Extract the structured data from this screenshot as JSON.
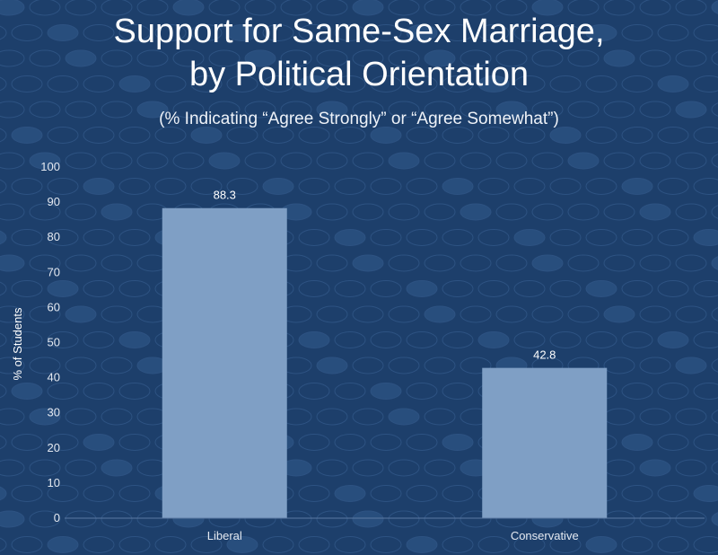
{
  "chart_data": {
    "type": "bar",
    "title_line1": "Support for Same-Sex Marriage,",
    "title_line2": "by Political Orientation",
    "subtitle": "(% Indicating “Agree Strongly” or “Agree Somewhat”)",
    "xlabel": "",
    "ylabel": "% of Students",
    "categories": [
      "Liberal",
      "Conservative"
    ],
    "values": [
      88.3,
      42.8
    ],
    "data_labels": [
      "88.3",
      "42.8"
    ],
    "ylim": [
      0,
      100
    ],
    "yticks": [
      0,
      10,
      20,
      30,
      40,
      50,
      60,
      70,
      80,
      90,
      100
    ],
    "grid": false,
    "legend": "none"
  },
  "colors": {
    "background": "#1d3f6b",
    "bar": "#7f9fc5",
    "axis": "#5c7aa3"
  }
}
